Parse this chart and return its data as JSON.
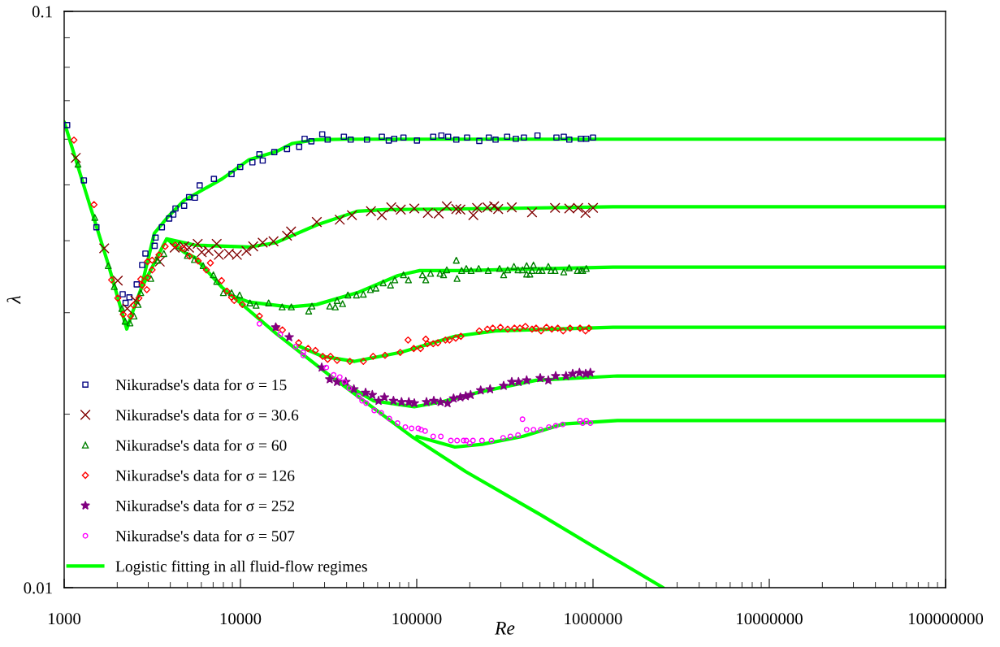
{
  "chart_data": {
    "type": "scatter",
    "xlabel": "Re",
    "ylabel": "λ",
    "log": "xy",
    "legend": "bottom left",
    "xlim": [
      1000,
      100000000
    ],
    "ylim": [
      0.01,
      0.1
    ],
    "xticks": [
      1000,
      {
        "value": 2000,
        "label": null
      },
      {
        "value": 3000,
        "label": null
      },
      {
        "value": 4000,
        "label": null
      },
      {
        "value": 5000,
        "label": null
      },
      {
        "value": 6000,
        "label": null
      },
      {
        "value": 7000,
        "label": null
      },
      {
        "value": 8000,
        "label": null
      },
      {
        "value": 9000,
        "label": null
      },
      10000,
      {
        "value": 20000,
        "label": null
      },
      {
        "value": 30000,
        "label": null
      },
      {
        "value": 40000,
        "label": null
      },
      {
        "value": 50000,
        "label": null
      },
      {
        "value": 60000,
        "label": null
      },
      {
        "value": 70000,
        "label": null
      },
      {
        "value": 80000,
        "label": null
      },
      {
        "value": 90000,
        "label": null
      },
      100000,
      {
        "value": 200000,
        "label": null
      },
      {
        "value": 300000,
        "label": null
      },
      {
        "value": 400000,
        "label": null
      },
      {
        "value": 500000,
        "label": null
      },
      {
        "value": 600000,
        "label": null
      },
      {
        "value": 700000,
        "label": null
      },
      {
        "value": 800000,
        "label": null
      },
      {
        "value": 900000,
        "label": null
      },
      1000000,
      {
        "value": 2000000,
        "label": null
      },
      {
        "value": 3000000,
        "label": null
      },
      {
        "value": 4000000,
        "label": null
      },
      {
        "value": 5000000,
        "label": null
      },
      {
        "value": 6000000,
        "label": null
      },
      {
        "value": 7000000,
        "label": null
      },
      {
        "value": 8000000,
        "label": null
      },
      {
        "value": 9000000,
        "label": null
      },
      10000000,
      {
        "value": 20000000,
        "label": null
      },
      {
        "value": 30000000,
        "label": null
      },
      {
        "value": 40000000,
        "label": null
      },
      {
        "value": 50000000,
        "label": null
      },
      {
        "value": 60000000,
        "label": null
      },
      {
        "value": 70000000,
        "label": null
      },
      {
        "value": 80000000,
        "label": null
      },
      {
        "value": 90000000,
        "label": null
      },
      100000000
    ],
    "yticks": [
      0.01,
      {
        "value": 0.02,
        "label": null
      },
      {
        "value": 0.03,
        "label": null
      },
      {
        "value": 0.04,
        "label": null
      },
      {
        "value": 0.05,
        "label": null
      },
      {
        "value": 0.06,
        "label": null
      },
      {
        "value": 0.07,
        "label": null
      },
      {
        "value": 0.08,
        "label": null
      },
      {
        "value": 0.09,
        "label": null
      },
      0.1
    ],
    "series": [
      {
        "name": "Nikuradse's data for σ = 15",
        "marker": "square",
        "color": "#000080",
        "x": [
          1040,
          1294,
          1524,
          2147,
          2230,
          2345,
          2579,
          2770,
          2890,
          3260,
          3300,
          3584,
          3944,
          4160,
          4280,
          4792,
          5110,
          5520,
          5870,
          7070,
          8900,
          9970,
          11690,
          12810,
          13370,
          15560,
          18370,
          21530,
          23120,
          25250,
          29100,
          31230,
          38610,
          42200,
          52200,
          63400,
          69400,
          74500,
          84100,
          100300,
          124000,
          138000,
          150700,
          167700,
          193100,
          226400,
          256400,
          280000,
          325800,
          364900,
          405600,
          484300,
          620300,
          682500,
          733700,
          853000,
          916000,
          1000000
        ],
        "values": [
          0.0635,
          0.0509,
          0.0422,
          0.0323,
          0.0312,
          0.0319,
          0.0336,
          0.0363,
          0.038,
          0.0392,
          0.0405,
          0.0422,
          0.0437,
          0.0444,
          0.0455,
          0.046,
          0.0476,
          0.0475,
          0.0499,
          0.0512,
          0.0522,
          0.0537,
          0.0547,
          0.0565,
          0.0551,
          0.057,
          0.0577,
          0.0582,
          0.0601,
          0.0595,
          0.0612,
          0.0599,
          0.0606,
          0.0599,
          0.0599,
          0.0606,
          0.0597,
          0.0601,
          0.0604,
          0.0597,
          0.0606,
          0.0609,
          0.0606,
          0.0599,
          0.0604,
          0.0596,
          0.0604,
          0.0599,
          0.0606,
          0.0601,
          0.0604,
          0.0609,
          0.0604,
          0.0606,
          0.0599,
          0.0601,
          0.0601,
          0.0604
        ]
      },
      {
        "name": "Nikuradse's data for σ = 30.6",
        "marker": "cross",
        "color": "#800000",
        "x": [
          1164,
          1687,
          2014,
          2280,
          2535,
          3486,
          4234,
          4792,
          5110,
          5720,
          6030,
          6590,
          7330,
          7540,
          8600,
          9550,
          10810,
          11810,
          13370,
          15400,
          18370,
          19370,
          27100,
          36600,
          42900,
          55000,
          63400,
          71700,
          81200,
          96900,
          115700,
          133200,
          148100,
          167700,
          176800,
          209500,
          220000,
          251700,
          275000,
          289800,
          346100,
          451000,
          609000,
          733700,
          823500,
          906000,
          1000000
        ],
        "values": [
          0.0557,
          0.0388,
          0.0341,
          0.0305,
          0.0315,
          0.0368,
          0.0389,
          0.0391,
          0.0389,
          0.0395,
          0.0382,
          0.0384,
          0.0395,
          0.0378,
          0.038,
          0.0378,
          0.0384,
          0.0391,
          0.0397,
          0.0399,
          0.0408,
          0.0415,
          0.0431,
          0.0435,
          0.0443,
          0.045,
          0.0443,
          0.0457,
          0.0453,
          0.0455,
          0.0447,
          0.0446,
          0.0459,
          0.0454,
          0.0453,
          0.0443,
          0.0456,
          0.0457,
          0.0459,
          0.0454,
          0.0457,
          0.0448,
          0.0456,
          0.0455,
          0.0456,
          0.0447,
          0.0456
        ]
      },
      {
        "name": "Nikuradse's data for σ = 60",
        "marker": "triangle",
        "color": "#008000",
        "x": [
          1198,
          1492,
          1779,
          1924,
          2124,
          2216,
          2362,
          2490,
          2627,
          2720,
          3102,
          3388,
          3677,
          4465,
          5000,
          5480,
          6140,
          7020,
          7330,
          8000,
          8900,
          9890,
          11320,
          12270,
          14450,
          17240,
          19440,
          24380,
          25440,
          32100,
          34500,
          35330,
          37960,
          40700,
          45500,
          49800,
          54600,
          58700,
          64500,
          71000,
          75100,
          84100,
          89700,
          107700,
          112500,
          119800,
          135600,
          142000,
          148100,
          167700,
          169400,
          179800,
          191000,
          203500,
          224700,
          254400,
          295000,
          311200,
          328200,
          356000,
          375500,
          398000,
          420300,
          420300,
          438600,
          459500,
          451000,
          492800,
          514000,
          557800,
          577900,
          609000,
          682500,
          732800,
          815000,
          853000,
          874000,
          916000
        ],
        "values": [
          0.0543,
          0.0439,
          0.0362,
          0.0333,
          0.0305,
          0.029,
          0.0288,
          0.0296,
          0.031,
          0.0325,
          0.0344,
          0.037,
          0.038,
          0.0392,
          0.0377,
          0.0371,
          0.0362,
          0.0349,
          0.034,
          0.0325,
          0.0325,
          0.0322,
          0.0312,
          0.0309,
          0.0312,
          0.0307,
          0.0307,
          0.0302,
          0.0308,
          0.0308,
          0.0307,
          0.0315,
          0.0311,
          0.0322,
          0.0322,
          0.0323,
          0.0329,
          0.0331,
          0.0338,
          0.0335,
          0.0342,
          0.0349,
          0.0342,
          0.0349,
          0.0342,
          0.0351,
          0.0351,
          0.0349,
          0.0356,
          0.037,
          0.0344,
          0.0355,
          0.0358,
          0.0355,
          0.0358,
          0.0355,
          0.0358,
          0.0349,
          0.0356,
          0.0361,
          0.0356,
          0.0356,
          0.0362,
          0.035,
          0.035,
          0.0363,
          0.0355,
          0.0355,
          0.0355,
          0.0361,
          0.0355,
          0.0355,
          0.0353,
          0.0359,
          0.0355,
          0.0355,
          0.0355,
          0.0358
        ]
      },
      {
        "name": "Nikuradse's data for σ = 126",
        "marker": "diamond",
        "color": "#ff0000",
        "x": [
          1136,
          1476,
          1857,
          2014,
          2163,
          2380,
          2473,
          2655,
          2720,
          2770,
          2943,
          2973,
          2973,
          3155,
          3155,
          3450,
          3740,
          4266,
          4708,
          5140,
          5760,
          6405,
          6754,
          7810,
          8380,
          8900,
          9215,
          10250,
          12810,
          15950,
          17300,
          21400,
          24200,
          26630,
          29300,
          31230,
          32400,
          35330,
          41770,
          49800,
          56560,
          66100,
          80600,
          89300,
          96200,
          105100,
          112500,
          115000,
          124000,
          131800,
          145500,
          153400,
          166400,
          178000,
          226400,
          251700,
          270000,
          298400,
          328200,
          358300,
          384800,
          413300,
          451000,
          475500,
          507000,
          544500,
          584000,
          631000,
          677000,
          741000,
          844000,
          906000,
          948000
        ],
        "values": [
          0.0598,
          0.0462,
          0.0342,
          0.0318,
          0.0298,
          0.0296,
          0.0309,
          0.0318,
          0.0343,
          0.0335,
          0.0329,
          0.0345,
          0.0368,
          0.037,
          0.0356,
          0.0378,
          0.0391,
          0.0393,
          0.0388,
          0.0376,
          0.0369,
          0.0356,
          0.0366,
          0.0341,
          0.0327,
          0.0319,
          0.0315,
          0.031,
          0.0296,
          0.0283,
          0.028,
          0.0266,
          0.026,
          0.0258,
          0.0252,
          0.0249,
          0.0252,
          0.0248,
          0.0247,
          0.0247,
          0.0252,
          0.0253,
          0.0256,
          0.0269,
          0.026,
          0.026,
          0.027,
          0.0265,
          0.0265,
          0.0266,
          0.0269,
          0.0269,
          0.0271,
          0.0273,
          0.0279,
          0.0281,
          0.0282,
          0.0283,
          0.0281,
          0.0282,
          0.0282,
          0.0284,
          0.0281,
          0.0282,
          0.0279,
          0.0283,
          0.0281,
          0.0282,
          0.0279,
          0.0282,
          0.0282,
          0.0279,
          0.0282
        ]
      },
      {
        "name": "Nikuradse's data for σ = 252",
        "marker": "star",
        "color": "#800080",
        "x": [
          15850,
          18900,
          28900,
          32100,
          35330,
          39600,
          44000,
          51270,
          55970,
          60740,
          65600,
          73800,
          82000,
          90200,
          96900,
          113600,
          125000,
          136500,
          149600,
          161800,
          176800,
          189700,
          202100,
          230600,
          260800,
          311200,
          346100,
          377800,
          420300,
          501700,
          557800,
          614000,
          702600,
          767000,
          837700,
          909000,
          966000
        ],
        "values": [
          0.0283,
          0.0272,
          0.0241,
          0.023,
          0.02275,
          0.02275,
          0.0221,
          0.0218,
          0.0216,
          0.0211,
          0.0214,
          0.0211,
          0.021,
          0.021,
          0.0209,
          0.021,
          0.0211,
          0.021,
          0.0209,
          0.0213,
          0.0214,
          0.0215,
          0.0216,
          0.022,
          0.0221,
          0.0224,
          0.02275,
          0.02275,
          0.0229,
          0.0231,
          0.0229,
          0.0233,
          0.0233,
          0.0235,
          0.0236,
          0.0235,
          0.0236
        ]
      },
      {
        "name": "Nikuradse's data for σ = 507",
        "marker": "circle",
        "color": "#ff00ff",
        "x": [
          12810,
          16820,
          20570,
          22710,
          22710,
          30700,
          33780,
          36600,
          38900,
          41450,
          46930,
          48970,
          51630,
          57410,
          62890,
          69930,
          77800,
          86200,
          93500,
          102100,
          106000,
          111600,
          124000,
          137000,
          156200,
          169400,
          184500,
          191000,
          200000,
          208500,
          234500,
          265500,
          309000,
          340000,
          375500,
          398000,
          420300,
          459500,
          505000,
          562000,
          615000,
          673000,
          844000,
          874000,
          916000,
          966000
        ],
        "values": [
          0.0287,
          0.0275,
          0.0262,
          0.0256,
          0.0253,
          0.0241,
          0.0234,
          0.0232,
          0.02275,
          0.0222,
          0.0215,
          0.0211,
          0.0209,
          0.0203,
          0.0201,
          0.01965,
          0.0193,
          0.019,
          0.0189,
          0.0189,
          0.0188,
          0.0187,
          0.0183,
          0.0183,
          0.018,
          0.018,
          0.018,
          0.018,
          0.0178,
          0.018,
          0.018,
          0.018,
          0.0182,
          0.0183,
          0.0184,
          0.0196,
          0.0188,
          0.0188,
          0.0188,
          0.019,
          0.0191,
          0.0192,
          0.0195,
          0.0193,
          0.0195,
          0.0193
        ]
      },
      {
        "name": "Logistic fitting in all fluid-flow regimes",
        "type": "line",
        "line_style": "solid",
        "marker": "none",
        "color": "#00ff00",
        "x": [
          1000,
          1342,
          1779,
          2265,
          2446,
          2720,
          3810,
          4792,
          5520,
          7862,
          15950,
          31230,
          93500,
          189700,
          500000,
          1000000,
          2500000,
          null,
          2720,
          3247,
          3877,
          4792,
          7862,
          11200,
          15950,
          19720,
          27100,
          40000,
          100000000,
          null,
          3810,
          5520,
          11200,
          15950,
          27100,
          46100,
          65600,
          300000,
          1300000,
          100000000,
          null,
          8740,
          11200,
          19040,
          27100,
          46100,
          78300,
          104000,
          183000,
          1300000,
          100000000,
          null,
          21200,
          29100,
          44500,
          81200,
          164700,
          280000,
          1300000,
          100000000,
          null,
          37270,
          57000,
          96900,
          138000,
          234500,
          475500,
          1375000,
          100000000,
          null,
          100300,
          164700,
          234500,
          398000,
          677000,
          1375000,
          100000000
        ],
        "values": [
          0.0643,
          0.048,
          0.0364,
          0.0281,
          0.0301,
          0.0329,
          0.0403,
          0.0382,
          0.0374,
          0.0332,
          0.0276,
          0.0235,
          0.0183,
          0.0159,
          0.0134,
          0.0118,
          0.01,
          null,
          0.0329,
          0.0412,
          0.044,
          0.047,
          0.0512,
          0.0553,
          0.0571,
          0.059,
          0.0599,
          0.06,
          0.06,
          null,
          0.0403,
          0.0393,
          0.039,
          0.0397,
          0.0426,
          0.045,
          0.0453,
          0.0455,
          0.0458,
          0.0458,
          null,
          0.0322,
          0.0313,
          0.0307,
          0.031,
          0.0325,
          0.0348,
          0.0355,
          0.0355,
          0.036,
          0.036,
          null,
          0.0263,
          0.0252,
          0.0247,
          0.0256,
          0.0273,
          0.0279,
          0.0283,
          0.0283,
          null,
          0.02275,
          0.0211,
          0.0206,
          0.021,
          0.0219,
          0.0229,
          0.0233,
          0.0233,
          null,
          0.0183,
          0.01754,
          0.01773,
          0.0183,
          0.01923,
          0.0195,
          0.0195
        ]
      }
    ]
  }
}
